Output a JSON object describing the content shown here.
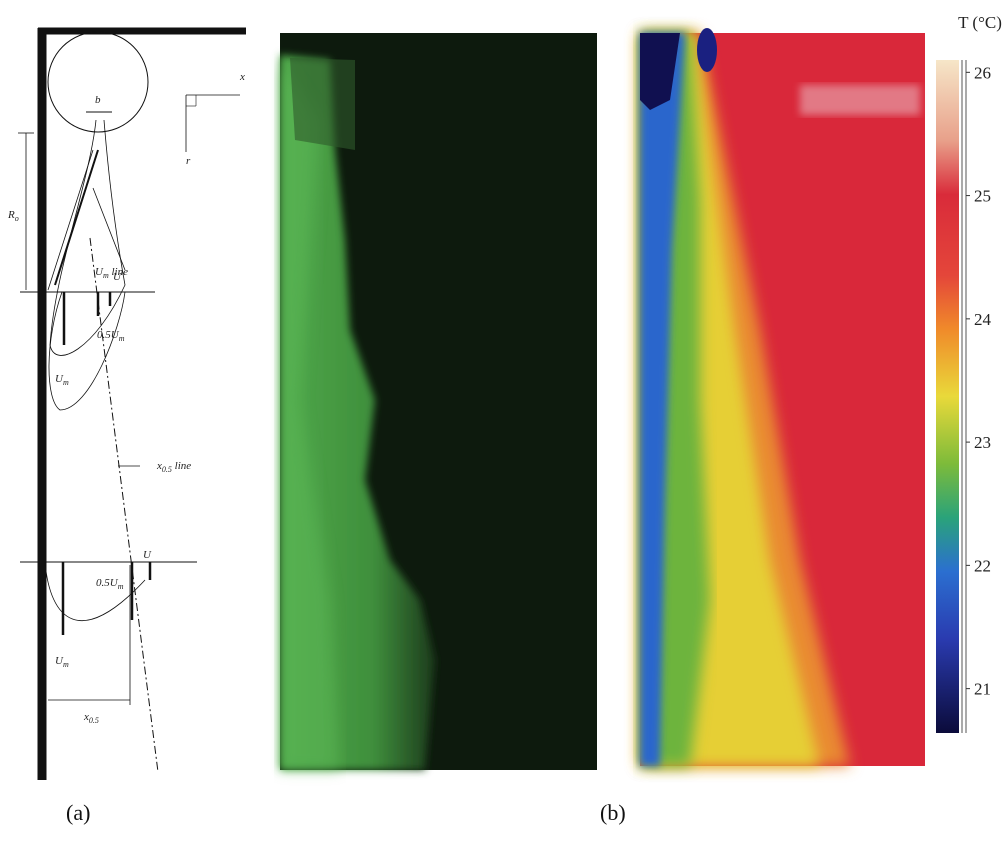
{
  "panel_a": {
    "labels": [
      {
        "text": "b"
      },
      {
        "text": "x"
      },
      {
        "text": "r"
      },
      {
        "text": "R",
        "sub": "o"
      },
      {
        "text": "U",
        "sub": "m",
        "after": " line"
      },
      {
        "text": "U"
      },
      {
        "text": "0.5U",
        "sub": "m"
      },
      {
        "text": "U",
        "sub": "m"
      },
      {
        "text": "x",
        "sub": "0.5",
        "after": " line"
      },
      {
        "text": "U"
      },
      {
        "text": "0.5U",
        "sub": "m"
      },
      {
        "text": "U",
        "sub": "m"
      },
      {
        "text": "x",
        "sub": "0.5"
      }
    ],
    "caption": "(a)"
  },
  "panel_b": {
    "caption": "(b)"
  },
  "colorbar": {
    "title": "T (°C)",
    "ticks": [
      21,
      22,
      23,
      24,
      25,
      26
    ],
    "range": [
      20.64,
      26.1
    ]
  }
}
